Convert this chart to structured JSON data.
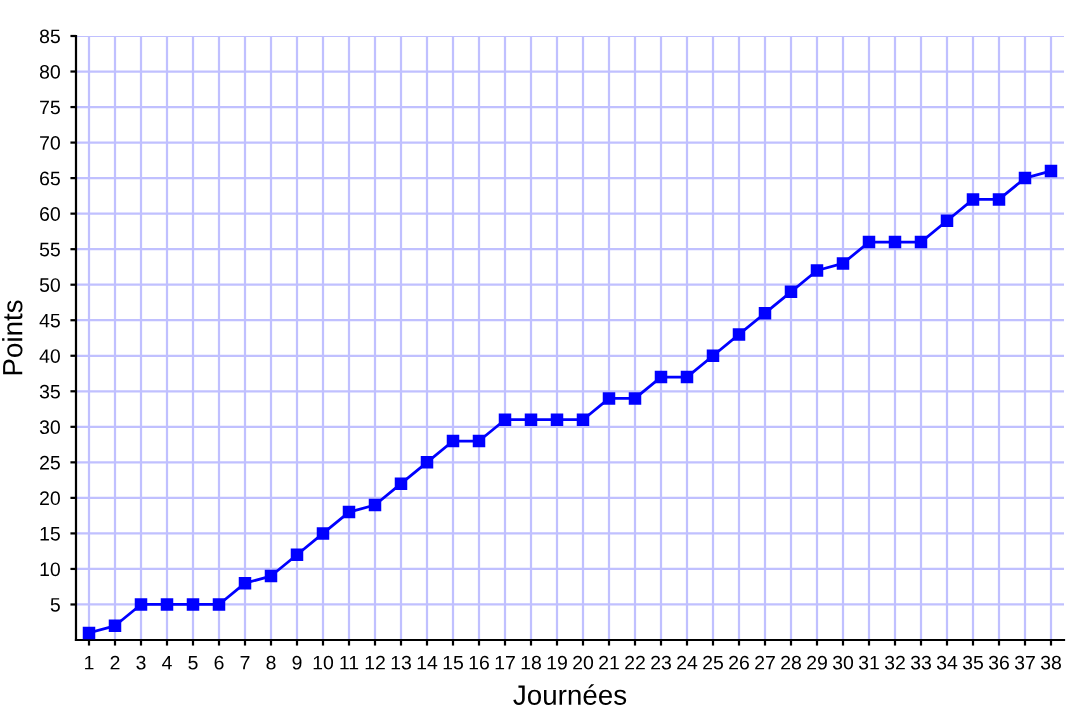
{
  "chart_data": {
    "type": "line",
    "xlabel": "Journées",
    "ylabel": "Points",
    "x": [
      1,
      2,
      3,
      4,
      5,
      6,
      7,
      8,
      9,
      10,
      11,
      12,
      13,
      14,
      15,
      16,
      17,
      18,
      19,
      20,
      21,
      22,
      23,
      24,
      25,
      26,
      27,
      28,
      29,
      30,
      31,
      32,
      33,
      34,
      35,
      36,
      37,
      38
    ],
    "series": [
      {
        "color": "#0000ff",
        "values": [
          1,
          2,
          5,
          5,
          5,
          5,
          8,
          9,
          12,
          15,
          18,
          19,
          22,
          25,
          28,
          28,
          31,
          31,
          31,
          31,
          34,
          34,
          37,
          37,
          40,
          43,
          46,
          49,
          52,
          53,
          56,
          56,
          56,
          59,
          62,
          62,
          65,
          66
        ]
      }
    ],
    "xlim": [
      0.5,
      38.5
    ],
    "xticks": [
      1,
      2,
      3,
      4,
      5,
      6,
      7,
      8,
      9,
      10,
      11,
      12,
      13,
      14,
      15,
      16,
      17,
      18,
      19,
      20,
      21,
      22,
      23,
      24,
      25,
      26,
      27,
      28,
      29,
      30,
      31,
      32,
      33,
      34,
      35,
      36,
      37,
      38
    ],
    "ylim": [
      0,
      85
    ],
    "yticks": [
      5,
      10,
      15,
      20,
      25,
      30,
      35,
      40,
      45,
      50,
      55,
      60,
      65,
      70,
      75,
      80,
      85
    ],
    "grid": true,
    "marker": "square",
    "line_style": "solid"
  }
}
